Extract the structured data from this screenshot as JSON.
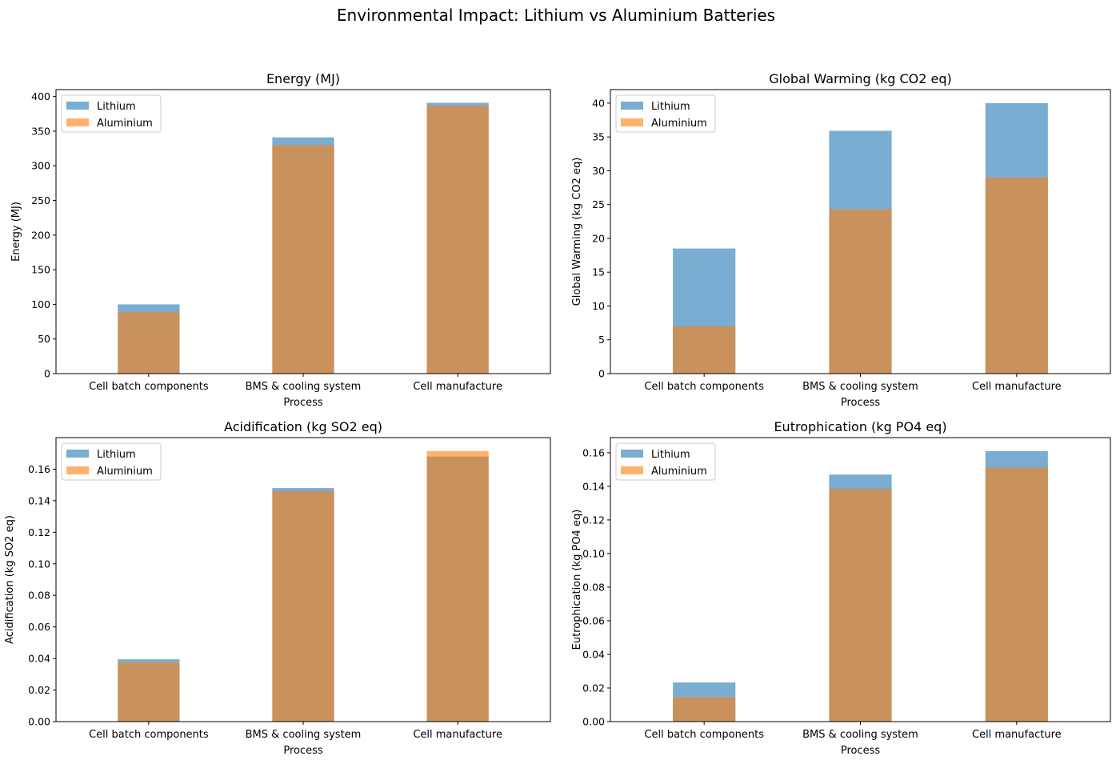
{
  "figure": {
    "title": "Environmental Impact: Lithium vs Aluminium Batteries"
  },
  "chart_data": [
    {
      "type": "bar",
      "title": "Energy (MJ)",
      "xlabel": "Process",
      "ylabel": "Energy (MJ)",
      "categories": [
        "Cell batch components",
        "BMS & cooling system",
        "Cell manufacture"
      ],
      "series": [
        {
          "name": "Lithium",
          "values": [
            100,
            341,
            391
          ]
        },
        {
          "name": "Aluminium",
          "values": [
            89,
            330,
            387
          ]
        }
      ],
      "ylim": [
        0,
        410
      ],
      "yticks": [
        0,
        50,
        100,
        150,
        200,
        250,
        300,
        350,
        400
      ],
      "ytick_labels": [
        "0",
        "50",
        "100",
        "150",
        "200",
        "250",
        "300",
        "350",
        "400"
      ],
      "legend": "top-left"
    },
    {
      "type": "bar",
      "title": "Global Warming (kg CO2 eq)",
      "xlabel": "Process",
      "ylabel": "Global Warming (kg CO2 eq)",
      "categories": [
        "Cell batch components",
        "BMS & cooling system",
        "Cell manufacture"
      ],
      "series": [
        {
          "name": "Lithium",
          "values": [
            18.5,
            35.9,
            40.0
          ]
        },
        {
          "name": "Aluminium",
          "values": [
            7.0,
            24.3,
            29.0
          ]
        }
      ],
      "ylim": [
        0,
        42
      ],
      "yticks": [
        0,
        5,
        10,
        15,
        20,
        25,
        30,
        35,
        40
      ],
      "ytick_labels": [
        "0",
        "5",
        "10",
        "15",
        "20",
        "25",
        "30",
        "35",
        "40"
      ],
      "legend": "top-left"
    },
    {
      "type": "bar",
      "title": "Acidification (kg SO2 eq)",
      "xlabel": "Process",
      "ylabel": "Acidification (kg SO2 eq)",
      "categories": [
        "Cell batch components",
        "BMS & cooling system",
        "Cell manufacture"
      ],
      "series": [
        {
          "name": "Lithium",
          "values": [
            0.0395,
            0.148,
            0.168
          ]
        },
        {
          "name": "Aluminium",
          "values": [
            0.0375,
            0.146,
            0.1715
          ]
        }
      ],
      "ylim": [
        0,
        0.18
      ],
      "yticks": [
        0,
        0.02,
        0.04,
        0.06,
        0.08,
        0.1,
        0.12,
        0.14,
        0.16
      ],
      "ytick_labels": [
        "0.00",
        "0.02",
        "0.04",
        "0.06",
        "0.08",
        "0.10",
        "0.12",
        "0.14",
        "0.16"
      ],
      "legend": "top-left"
    },
    {
      "type": "bar",
      "title": "Eutrophication (kg PO4 eq)",
      "xlabel": "Process",
      "ylabel": "Eutrophication (kg PO4 eq)",
      "categories": [
        "Cell batch components",
        "BMS & cooling system",
        "Cell manufacture"
      ],
      "series": [
        {
          "name": "Lithium",
          "values": [
            0.0233,
            0.147,
            0.161
          ]
        },
        {
          "name": "Aluminium",
          "values": [
            0.0145,
            0.1385,
            0.1512
          ]
        }
      ],
      "ylim": [
        0,
        0.169
      ],
      "yticks": [
        0,
        0.02,
        0.04,
        0.06,
        0.08,
        0.1,
        0.12,
        0.14,
        0.16
      ],
      "ytick_labels": [
        "0.00",
        "0.02",
        "0.04",
        "0.06",
        "0.08",
        "0.10",
        "0.12",
        "0.14",
        "0.16"
      ],
      "legend": "top-left"
    }
  ],
  "colors": {
    "lithium": "#1f77b4",
    "aluminium": "#ff7f0e",
    "opacity": 0.6
  }
}
